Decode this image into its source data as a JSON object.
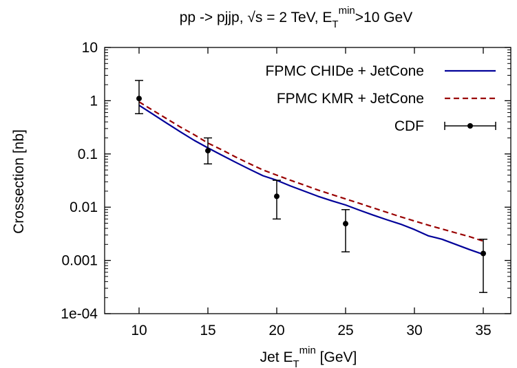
{
  "chart_data": {
    "type": "line",
    "title": "pp -> pjjp, √s = 2 TeV, E",
    "title_sub": "T",
    "title_sup": "min",
    "title_tail": ">10 GeV",
    "xlabel": "Jet E",
    "xlabel_sub": "T",
    "xlabel_sup": "min",
    "xlabel_tail": " [GeV]",
    "ylabel": "Crossection [nb]",
    "xlim": [
      7.5,
      37
    ],
    "ylim": [
      0.0001,
      10
    ],
    "yscale": "log",
    "x_ticks": [
      10,
      15,
      20,
      25,
      30,
      35
    ],
    "x_tick_labels": [
      "10",
      "15",
      "20",
      "25",
      "30",
      "35"
    ],
    "y_ticks": [
      10,
      1,
      0.1,
      0.01,
      0.001,
      0.0001
    ],
    "y_tick_labels": [
      "10",
      "1",
      "0.1",
      "0.01",
      "0.001",
      "1e-04"
    ],
    "grid": false,
    "legend_position": "top-right",
    "series": [
      {
        "name": "FPMC CHIDe + JetCone",
        "color": "#000099",
        "style": "solid",
        "x": [
          10,
          11,
          12,
          13,
          14,
          15,
          16,
          17,
          18,
          19,
          20,
          21,
          22,
          23,
          24,
          25,
          26,
          27,
          28,
          29,
          30,
          31,
          32,
          33,
          34,
          35
        ],
        "y": [
          0.82,
          0.56,
          0.38,
          0.26,
          0.18,
          0.13,
          0.095,
          0.07,
          0.052,
          0.039,
          0.032,
          0.025,
          0.02,
          0.016,
          0.0132,
          0.011,
          0.0088,
          0.0071,
          0.0058,
          0.0048,
          0.0038,
          0.0029,
          0.0025,
          0.002,
          0.0016,
          0.0013
        ]
      },
      {
        "name": "FPMC KMR + JetCone",
        "color": "#990000",
        "style": "dashed",
        "x": [
          10,
          11,
          12,
          13,
          14,
          15,
          16,
          17,
          18,
          19,
          20,
          21,
          22,
          23,
          24,
          25,
          26,
          27,
          28,
          29,
          30,
          31,
          32,
          33,
          34,
          35
        ],
        "y": [
          0.95,
          0.66,
          0.46,
          0.32,
          0.23,
          0.16,
          0.12,
          0.088,
          0.066,
          0.05,
          0.04,
          0.032,
          0.026,
          0.021,
          0.0173,
          0.0143,
          0.0118,
          0.0097,
          0.008,
          0.0066,
          0.0055,
          0.0046,
          0.0039,
          0.0033,
          0.0028,
          0.0023
        ]
      },
      {
        "name": "CDF",
        "color": "#000000",
        "style": "points-errorbars",
        "x": [
          10,
          15,
          20,
          25,
          35
        ],
        "y": [
          1.1,
          0.115,
          0.016,
          0.0049,
          0.00135
        ],
        "y_low": [
          0.57,
          0.065,
          0.006,
          0.00145,
          0.00025
        ],
        "y_high": [
          2.4,
          0.2,
          0.032,
          0.009,
          0.0025
        ]
      }
    ]
  }
}
